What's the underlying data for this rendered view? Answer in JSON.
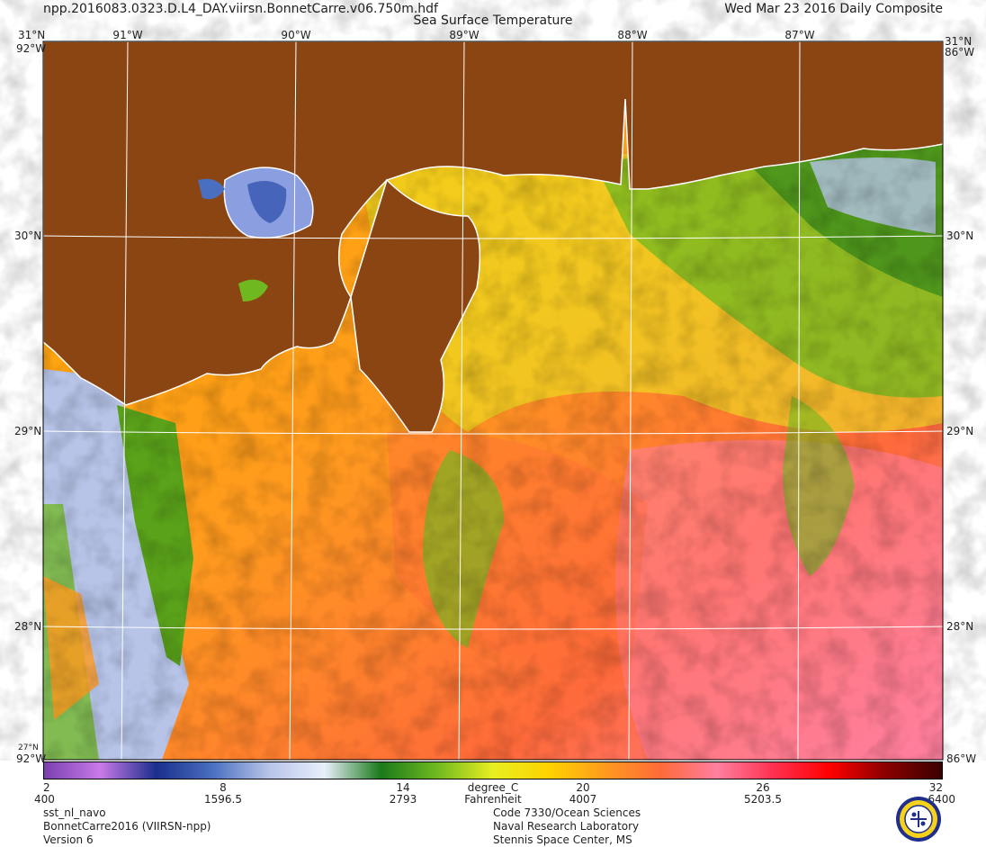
{
  "header": {
    "filename": "npp.2016083.0323.D.L4_DAY.viirsn.BonnetCarre.v06.750m.hdf",
    "product_title": "Sea Surface Temperature",
    "date_label": "Wed Mar 23 2016 Daily Composite"
  },
  "map": {
    "longitude_labels": [
      "91°W",
      "90°W",
      "89°W",
      "88°W",
      "87°W"
    ],
    "latitude_labels": [
      "31°N",
      "30°N",
      "29°N",
      "28°N"
    ],
    "corner_labels": [
      "31°N",
      "92°W",
      "92°W",
      "27°N",
      "92°W",
      "86°W",
      "86°W",
      "31°N",
      "86°W",
      "86°W"
    ],
    "land_color": "#8b4513",
    "grid_color": "#ffffff",
    "extent": {
      "lon_min": -91.6,
      "lon_max": -86.3,
      "lat_min": 27.25,
      "lat_max": 31.0
    }
  },
  "colorbar": {
    "celsius_ticks": [
      "2",
      "8",
      "14",
      "20",
      "26",
      "32"
    ],
    "fahrenheit_ticks": [
      "400",
      "1596.5",
      "2793",
      "4007",
      "5203.5",
      "6400"
    ],
    "unit_celsius": "degree_C",
    "unit_fahrenheit": "Fahrenheit",
    "range_celsius": [
      2,
      32
    ],
    "stops": [
      "#7b3fb0",
      "#c87ae8",
      "#1a2f8c",
      "#4a6fc0",
      "#b7c4e8",
      "#e8eefb",
      "#1a7a1a",
      "#6fb820",
      "#e8ef20",
      "#ffd200",
      "#ff9a1e",
      "#ff6a3a",
      "#ff7fa0",
      "#ff3050",
      "#ff0000",
      "#8b0000",
      "#3a0000"
    ]
  },
  "footer": {
    "left": [
      "sst_nl_navo",
      "BonnetCarre2016 (VIIRSN-npp)",
      "Version 6"
    ],
    "right": [
      "Code 7330/Ocean Sciences",
      "Naval Research Laboratory",
      "Stennis Space Center, MS"
    ]
  },
  "logo": {
    "name": "naval-research-laboratory-seal-icon"
  }
}
